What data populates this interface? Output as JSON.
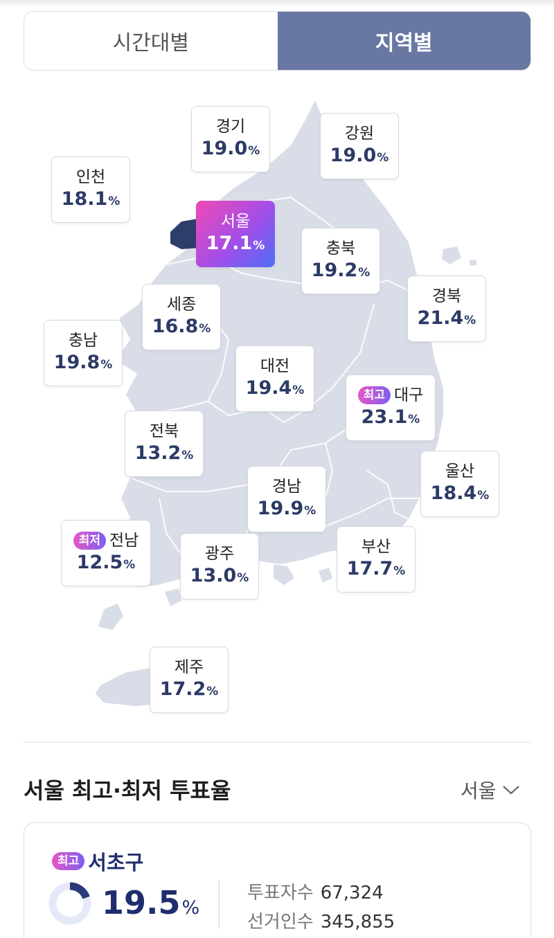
{
  "tabs": [
    {
      "label": "시간대별",
      "active": false
    },
    {
      "label": "지역별",
      "active": true
    }
  ],
  "map": {
    "regions": [
      {
        "name": "경기",
        "value": "19.0",
        "unit": "%"
      },
      {
        "name": "강원",
        "value": "19.0",
        "unit": "%"
      },
      {
        "name": "인천",
        "value": "18.1",
        "unit": "%"
      },
      {
        "name": "서울",
        "value": "17.1",
        "unit": "%",
        "selected": true
      },
      {
        "name": "충북",
        "value": "19.2",
        "unit": "%"
      },
      {
        "name": "경북",
        "value": "21.4",
        "unit": "%"
      },
      {
        "name": "세종",
        "value": "16.8",
        "unit": "%"
      },
      {
        "name": "충남",
        "value": "19.8",
        "unit": "%"
      },
      {
        "name": "대전",
        "value": "19.4",
        "unit": "%"
      },
      {
        "name": "대구",
        "value": "23.1",
        "unit": "%",
        "badge": "최고"
      },
      {
        "name": "전북",
        "value": "13.2",
        "unit": "%"
      },
      {
        "name": "울산",
        "value": "18.4",
        "unit": "%"
      },
      {
        "name": "경남",
        "value": "19.9",
        "unit": "%"
      },
      {
        "name": "전남",
        "value": "12.5",
        "unit": "%",
        "badge": "최저"
      },
      {
        "name": "광주",
        "value": "13.0",
        "unit": "%"
      },
      {
        "name": "부산",
        "value": "17.7",
        "unit": "%"
      },
      {
        "name": "제주",
        "value": "17.2",
        "unit": "%"
      }
    ],
    "colors": {
      "land": "#d9dde8",
      "selected_region": "#2f3d6b",
      "highlight_gradient": [
        "#f04ab4",
        "#a24ee8",
        "#4f6ef7"
      ]
    }
  },
  "section": {
    "title": "서울 최고·최저 투표율",
    "select_value": "서울",
    "select_icon": "chevron-down-icon"
  },
  "detail": {
    "badge": "최고",
    "district": "서초구",
    "rate": "19.5",
    "rate_unit": "%",
    "rate_fraction": 0.195,
    "voters_label": "투표자수",
    "voters_value": "67,324",
    "electorate_label": "선거인수",
    "electorate_value": "345,855"
  },
  "accent_color": "#6977a3"
}
